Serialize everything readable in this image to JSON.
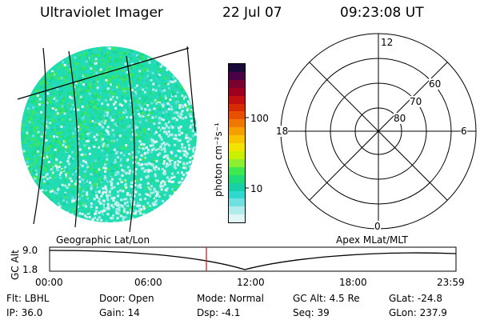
{
  "header": {
    "title": "Ultraviolet Imager",
    "date": "22 Jul 07",
    "time": "09:23:08 UT"
  },
  "colorbar": {
    "unit_label": "photon cm⁻²s⁻¹",
    "tick_labels": [
      "100",
      "10"
    ],
    "colors_top_to_bottom": [
      "#1a0a3a",
      "#4a0044",
      "#7a0030",
      "#a0001e",
      "#c21010",
      "#d62a00",
      "#e85000",
      "#f07800",
      "#f5a000",
      "#f8c400",
      "#f2e400",
      "#c8f000",
      "#8cf030",
      "#40e850",
      "#20dc78",
      "#18d0a8",
      "#30d8d0",
      "#70e0e0",
      "#b0ecec",
      "#e0f6f6"
    ]
  },
  "polar": {
    "mlt_labels": {
      "top": "12",
      "left": "18",
      "right": "6",
      "bottom": "0"
    },
    "lat_labels": [
      "60",
      "70",
      "80"
    ]
  },
  "altitude": {
    "section_left_label": "Geographic Lat/Lon",
    "section_right_label": "Apex MLat/MLT",
    "axis_label": "GC Alt",
    "y_ticks": [
      "9.0",
      "1.8"
    ],
    "time_ticks": [
      "00:00",
      "06:00",
      "12:00",
      "18:00",
      "23:59"
    ]
  },
  "footer": {
    "flt": "Flt: LBHL",
    "ip": "IP: 36.0",
    "door": "Door: Open",
    "gain": "Gain: 14",
    "mode": "Mode: Normal",
    "dsp": "Dsp:   -4.1",
    "gc_alt": "GC Alt: 4.5 Re",
    "seq": "Seq: 39",
    "glat": "GLat: -24.8",
    "glon": "GLon: 237.9"
  },
  "colors": {
    "current_time_marker": "#cc2222",
    "disk_base": "#20dcb0"
  }
}
